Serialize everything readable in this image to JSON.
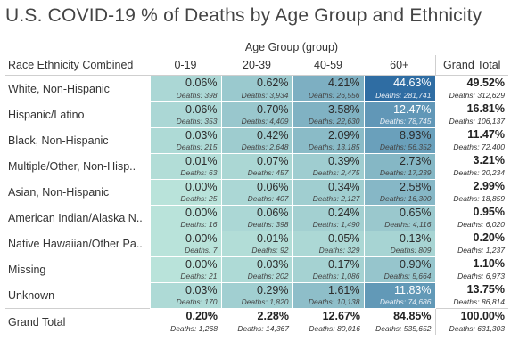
{
  "chart_data": {
    "type": "table",
    "title": "U.S. COVID-19 % of Deaths by Age Group and Ethnicity",
    "column_group_label": "Age Group (group)",
    "row_header": "Race Ethnicity Combined",
    "columns": [
      "0-19",
      "20-39",
      "40-59",
      "60+"
    ],
    "total_label": "Grand Total",
    "deaths_prefix": "Deaths: ",
    "rows": [
      {
        "label": "White, Non-Hispanic",
        "pct": [
          "0.06%",
          "0.62%",
          "4.21%",
          "44.63%"
        ],
        "deaths": [
          "398",
          "3,934",
          "26,556",
          "281,741"
        ],
        "total_pct": "49.52%",
        "total_deaths": "312,629"
      },
      {
        "label": "Hispanic/Latino",
        "pct": [
          "0.06%",
          "0.70%",
          "3.58%",
          "12.47%"
        ],
        "deaths": [
          "353",
          "4,409",
          "22,630",
          "78,745"
        ],
        "total_pct": "16.81%",
        "total_deaths": "106,137"
      },
      {
        "label": "Black, Non-Hispanic",
        "pct": [
          "0.03%",
          "0.42%",
          "2.09%",
          "8.93%"
        ],
        "deaths": [
          "215",
          "2,648",
          "13,185",
          "56,352"
        ],
        "total_pct": "11.47%",
        "total_deaths": "72,400"
      },
      {
        "label": "Multiple/Other, Non-Hisp..",
        "pct": [
          "0.01%",
          "0.07%",
          "0.39%",
          "2.73%"
        ],
        "deaths": [
          "63",
          "457",
          "2,475",
          "17,239"
        ],
        "total_pct": "3.21%",
        "total_deaths": "20,234"
      },
      {
        "label": "Asian, Non-Hispanic",
        "pct": [
          "0.00%",
          "0.06%",
          "0.34%",
          "2.58%"
        ],
        "deaths": [
          "25",
          "407",
          "2,127",
          "16,300"
        ],
        "total_pct": "2.99%",
        "total_deaths": "18,859"
      },
      {
        "label": "American Indian/Alaska N..",
        "pct": [
          "0.00%",
          "0.06%",
          "0.24%",
          "0.65%"
        ],
        "deaths": [
          "16",
          "398",
          "1,490",
          "4,116"
        ],
        "total_pct": "0.95%",
        "total_deaths": "6,020"
      },
      {
        "label": "Native Hawaiian/Other Pa..",
        "pct": [
          "0.00%",
          "0.01%",
          "0.05%",
          "0.13%"
        ],
        "deaths": [
          "7",
          "92",
          "329",
          "809"
        ],
        "total_pct": "0.20%",
        "total_deaths": "1,237"
      },
      {
        "label": "Missing",
        "pct": [
          "0.00%",
          "0.03%",
          "0.17%",
          "0.90%"
        ],
        "deaths": [
          "21",
          "202",
          "1,086",
          "5,664"
        ],
        "total_pct": "1.10%",
        "total_deaths": "6,973"
      },
      {
        "label": "Unknown",
        "pct": [
          "0.03%",
          "0.29%",
          "1.61%",
          "11.83%"
        ],
        "deaths": [
          "170",
          "1,820",
          "10,138",
          "74,686"
        ],
        "total_pct": "13.75%",
        "total_deaths": "86,814"
      }
    ],
    "grand_total": {
      "label": "Grand Total",
      "pct": [
        "0.20%",
        "2.28%",
        "12.67%",
        "84.85%"
      ],
      "deaths": [
        "1,268",
        "14,367",
        "80,016",
        "535,652"
      ],
      "total_pct": "100.00%",
      "total_deaths": "631,303"
    },
    "color_scale": {
      "low": "#b9e3da",
      "high": "#2f6da3"
    }
  }
}
